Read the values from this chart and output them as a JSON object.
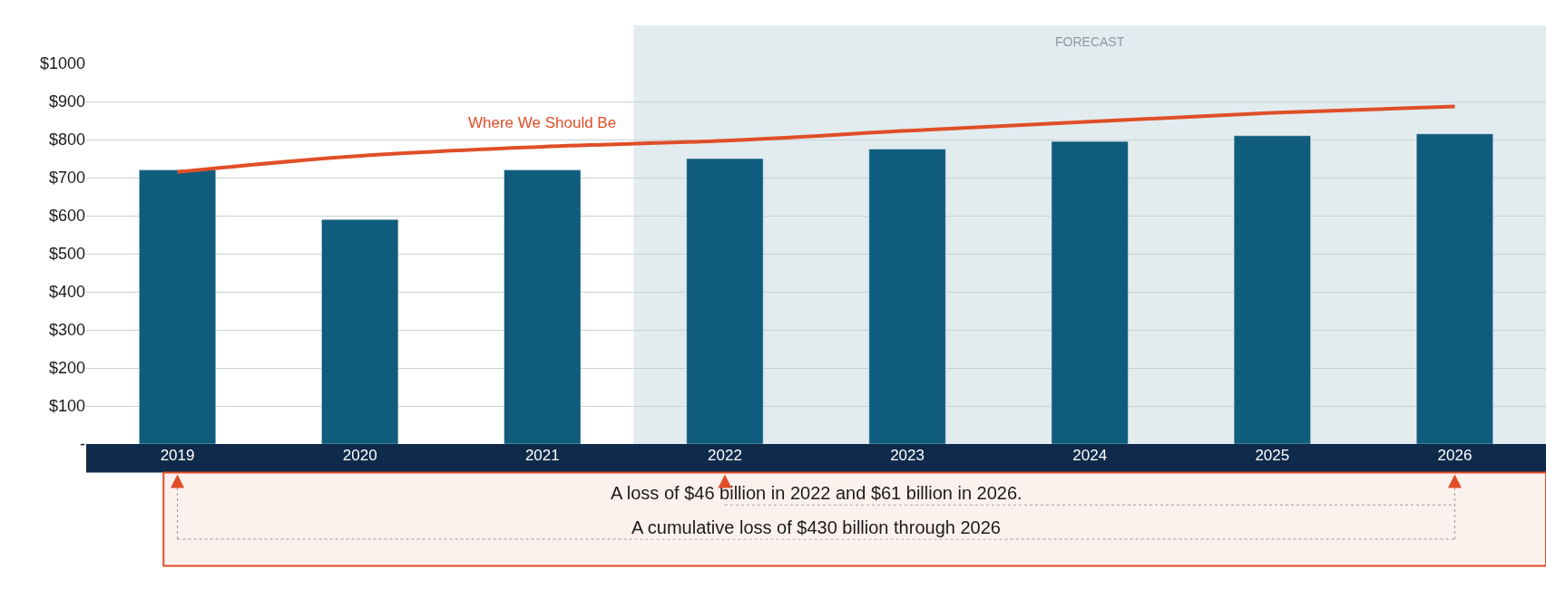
{
  "chart_data": {
    "type": "bar",
    "categories": [
      "2019",
      "2020",
      "2021",
      "2022",
      "2023",
      "2024",
      "2025",
      "2026"
    ],
    "series": [
      {
        "color": "#0f5c7c",
        "values": [
          720,
          590,
          720,
          750,
          775,
          795,
          810,
          815
        ]
      },
      {
        "type": "line",
        "name": "Where We Should Be",
        "color": "#e04e27",
        "values": [
          715,
          757,
          781,
          797,
          823,
          847,
          870,
          887
        ]
      }
    ],
    "ylim": [
      0,
      1000
    ],
    "yticks": [
      {
        "value": 0,
        "label": "-"
      },
      {
        "value": 100,
        "label": "$100"
      },
      {
        "value": 200,
        "label": "$200"
      },
      {
        "value": 300,
        "label": "$300"
      },
      {
        "value": 400,
        "label": "$400"
      },
      {
        "value": 500,
        "label": "$500"
      },
      {
        "value": 600,
        "label": "$600"
      },
      {
        "value": 700,
        "label": "$700"
      },
      {
        "value": 800,
        "label": "$800"
      },
      {
        "value": 900,
        "label": "$900"
      },
      {
        "value": 1000,
        "label": "$1000"
      }
    ],
    "grid": "y",
    "legend": false,
    "marker": "none",
    "bands": [
      {
        "axis": "x",
        "from": "2022",
        "to": "2026",
        "label": "FORECAST",
        "color": "#e2ecef"
      }
    ],
    "annotations": [
      "A loss of $46 billion in 2022 and $61 billion in 2026.",
      "A cumulative loss of $430 billion through 2026"
    ]
  }
}
